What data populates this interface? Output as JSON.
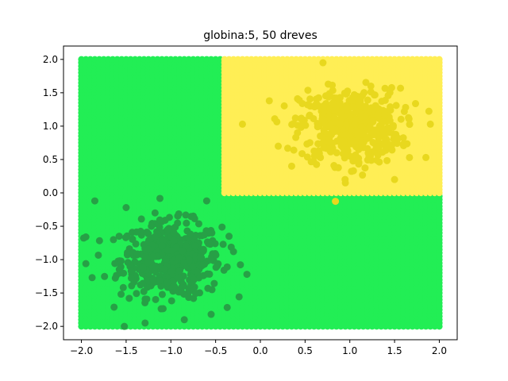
{
  "chart_data": {
    "type": "scatter",
    "title": "globina:5, 50 dreves",
    "xlabel": "",
    "ylabel": "",
    "xlim": [
      -2.2,
      2.2
    ],
    "ylim": [
      -2.2,
      2.2
    ],
    "grid": false,
    "x_ticks": [
      -2.0,
      -1.5,
      -1.0,
      -0.5,
      0.0,
      0.5,
      1.0,
      1.5,
      2.0
    ],
    "y_ticks": [
      -2.0,
      -1.5,
      -1.0,
      -0.5,
      0.0,
      0.5,
      1.0,
      1.5,
      2.0
    ],
    "x_tick_labels": [
      "−2.0",
      "−1.5",
      "−1.0",
      "−0.5",
      "0.0",
      "0.5",
      "1.0",
      "1.5",
      "2.0"
    ],
    "y_tick_labels": [
      "−2.0",
      "−1.5",
      "−1.0",
      "−0.5",
      "0.0",
      "0.5",
      "1.0",
      "1.5",
      "2.0"
    ],
    "decision_grid": {
      "x_range": [
        -2.0,
        2.0
      ],
      "y_range": [
        -2.0,
        2.0
      ],
      "step": 0.05,
      "region_class1": {
        "x_min": -0.4,
        "y_min": 0.0,
        "description": "yellow region where x >= -0.4 and y >= 0"
      },
      "colors": {
        "class0": "#22ee55",
        "class1": "#ffee55"
      }
    },
    "clusters": [
      {
        "center": [
          -1.0,
          -1.0
        ],
        "spread": 0.28,
        "count": 500,
        "color": "#27a046"
      },
      {
        "center": [
          1.0,
          1.0
        ],
        "spread": 0.28,
        "count": 500,
        "color": "#e8d81e"
      }
    ],
    "outlier_points": [
      {
        "x": -1.85,
        "y": -0.12,
        "cls": 0
      },
      {
        "x": -1.95,
        "y": -0.66,
        "cls": 0
      },
      {
        "x": -1.95,
        "y": -1.06,
        "cls": 0
      },
      {
        "x": -1.88,
        "y": -1.27,
        "cls": 0
      },
      {
        "x": -1.52,
        "y": -2.0,
        "cls": 0
      },
      {
        "x": -0.85,
        "y": -1.9,
        "cls": 0
      },
      {
        "x": -0.55,
        "y": -1.82,
        "cls": 0
      },
      {
        "x": -0.15,
        "y": -1.22,
        "cls": 0
      },
      {
        "x": -0.3,
        "y": -0.88,
        "cls": 0
      },
      {
        "x": -0.35,
        "y": -0.65,
        "cls": 0
      },
      {
        "x": -0.6,
        "y": -0.12,
        "cls": 0
      },
      {
        "x": -1.5,
        "y": -0.22,
        "cls": 0
      },
      {
        "x": 0.1,
        "y": 1.38,
        "cls": 1
      },
      {
        "x": -0.2,
        "y": 1.03,
        "cls": 1
      },
      {
        "x": 0.2,
        "y": 0.7,
        "cls": 1
      },
      {
        "x": 0.35,
        "y": 0.4,
        "cls": 1
      },
      {
        "x": 0.7,
        "y": 1.95,
        "cls": 1
      },
      {
        "x": 1.9,
        "y": 1.03,
        "cls": 1
      },
      {
        "x": 1.85,
        "y": 0.53,
        "cls": 1
      },
      {
        "x": 1.5,
        "y": 0.2,
        "cls": 1
      },
      {
        "x": 0.95,
        "y": 0.15,
        "cls": 1
      }
    ]
  }
}
